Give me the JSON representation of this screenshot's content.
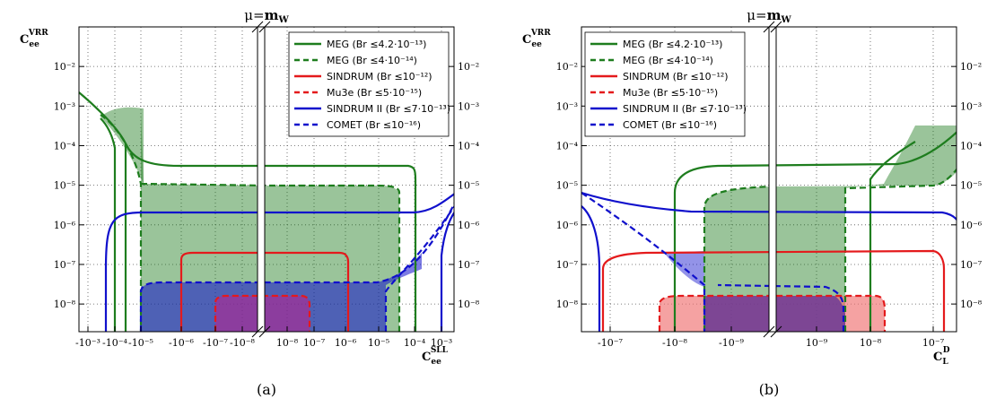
{
  "figure": {
    "panel_a_title": "μ=m_W",
    "panel_b_title": "μ=m_W",
    "caption_a": "(a)",
    "caption_b": "(b)"
  },
  "legend": [
    {
      "label": "MEG (Br ≤4.2·10⁻¹³)",
      "color": "#1e7d1e",
      "dash": "solid"
    },
    {
      "label": "MEG (Br ≤4·10⁻¹⁴)",
      "color": "#1e7d1e",
      "dash": "dashed"
    },
    {
      "label": "SINDRUM (Br ≤10⁻¹²)",
      "color": "#e41a1c",
      "dash": "solid"
    },
    {
      "label": "Mu3e (Br ≤5·10⁻¹⁵)",
      "color": "#e41a1c",
      "dash": "dashed"
    },
    {
      "label": "SINDRUM II (Br ≤7·10⁻¹³)",
      "color": "#1010cc",
      "dash": "solid"
    },
    {
      "label": "COMET (Br ≤10⁻¹⁶)",
      "color": "#1010cc",
      "dash": "dashed"
    }
  ],
  "chart_data": [
    {
      "type": "area",
      "panel": "a",
      "title": "μ=m_W",
      "xlabel": "C_ee^SLL",
      "ylabel": "C_ee^VRR",
      "ylog": true,
      "ylim": [
        2e-09,
        0.1
      ],
      "x_scale": "symmetric-log (broken axis)",
      "x_tick_labels": [
        "-10⁻³",
        "-10⁻⁴",
        "-10⁻⁵",
        "-10⁻⁶",
        "-10⁻⁷",
        "-10⁻⁸",
        "10⁻⁸",
        "10⁻⁷",
        "10⁻⁶",
        "10⁻⁵",
        "10⁻⁴",
        "10⁻³"
      ],
      "y_tick_labels": [
        "10⁻⁸",
        "10⁻⁷",
        "10⁻⁶",
        "10⁻⁵",
        "10⁻⁴",
        "10⁻³",
        "10⁻²"
      ],
      "grid": true,
      "legend_position": "top-right of left half",
      "series": [
        {
          "name": "MEG (Br ≤4.2·10⁻¹³)",
          "plateau_y": 3e-05,
          "x_walls": [
            "-1e-4",
            "5e-5"
          ]
        },
        {
          "name": "MEG (Br ≤4·10⁻¹⁴)",
          "plateau_y": 1e-05,
          "x_walls": [
            "-1e-5",
            "2e-5"
          ]
        },
        {
          "name": "SINDRUM (Br ≤10⁻¹²)",
          "plateau_y": 2e-07,
          "x_walls": [
            "-1e-6",
            "1e-6"
          ]
        },
        {
          "name": "Mu3e (Br ≤5·10⁻¹⁵)",
          "plateau_y": 1.5e-08,
          "x_walls": [
            "-1e-7",
            "1e-7"
          ]
        },
        {
          "name": "SINDRUM II (Br ≤7·10⁻¹³)",
          "plateau_y": 2e-06,
          "x_walls": [
            "-1.5e-3",
            "1e-3"
          ]
        },
        {
          "name": "COMET (Br ≤10⁻¹⁶)",
          "plateau_y": 3.5e-08,
          "x_walls": [
            "-3e-5",
            "2e-5"
          ]
        }
      ]
    },
    {
      "type": "area",
      "panel": "b",
      "title": "μ=m_W",
      "xlabel": "C_L^D",
      "ylabel": "C_ee^VRR",
      "ylog": true,
      "ylim": [
        2e-09,
        0.1
      ],
      "x_scale": "symmetric-log (broken axis)",
      "x_tick_labels": [
        "-10⁻⁷",
        "-10⁻⁸",
        "-10⁻⁹",
        "10⁻⁹",
        "10⁻⁸",
        "10⁻⁷"
      ],
      "y_tick_labels": [
        "10⁻⁸",
        "10⁻⁷",
        "10⁻⁶",
        "10⁻⁵",
        "10⁻⁴",
        "10⁻³",
        "10⁻²"
      ],
      "grid": true,
      "legend_position": "top-left",
      "series": [
        {
          "name": "MEG (Br ≤4.2·10⁻¹³)",
          "plateau_y": 3e-05,
          "x_walls": [
            "-1e-8",
            "1e-8"
          ]
        },
        {
          "name": "MEG (Br ≤4·10⁻¹⁴)",
          "plateau_y": 1e-05,
          "x_walls": [
            "-4e-9",
            "3e-9"
          ]
        },
        {
          "name": "SINDRUM (Br ≤10⁻¹²)",
          "plateau_y": 2e-07,
          "x_walls": [
            "-2e-7",
            "2e-7"
          ]
        },
        {
          "name": "Mu3e (Br ≤5·10⁻¹⁵)",
          "plateau_y": 1.5e-08,
          "x_walls": [
            "-2e-8",
            "2e-8"
          ]
        },
        {
          "name": "SINDRUM II (Br ≤7·10⁻¹³)",
          "plateau_y": 2e-06,
          "x_walls": [
            "-4e-7",
            "3e-7"
          ]
        },
        {
          "name": "COMET (Br ≤10⁻¹⁶)",
          "plateau_y": 3.5e-08,
          "x_walls": [
            "-4e-9",
            "3e-9"
          ]
        }
      ]
    }
  ]
}
